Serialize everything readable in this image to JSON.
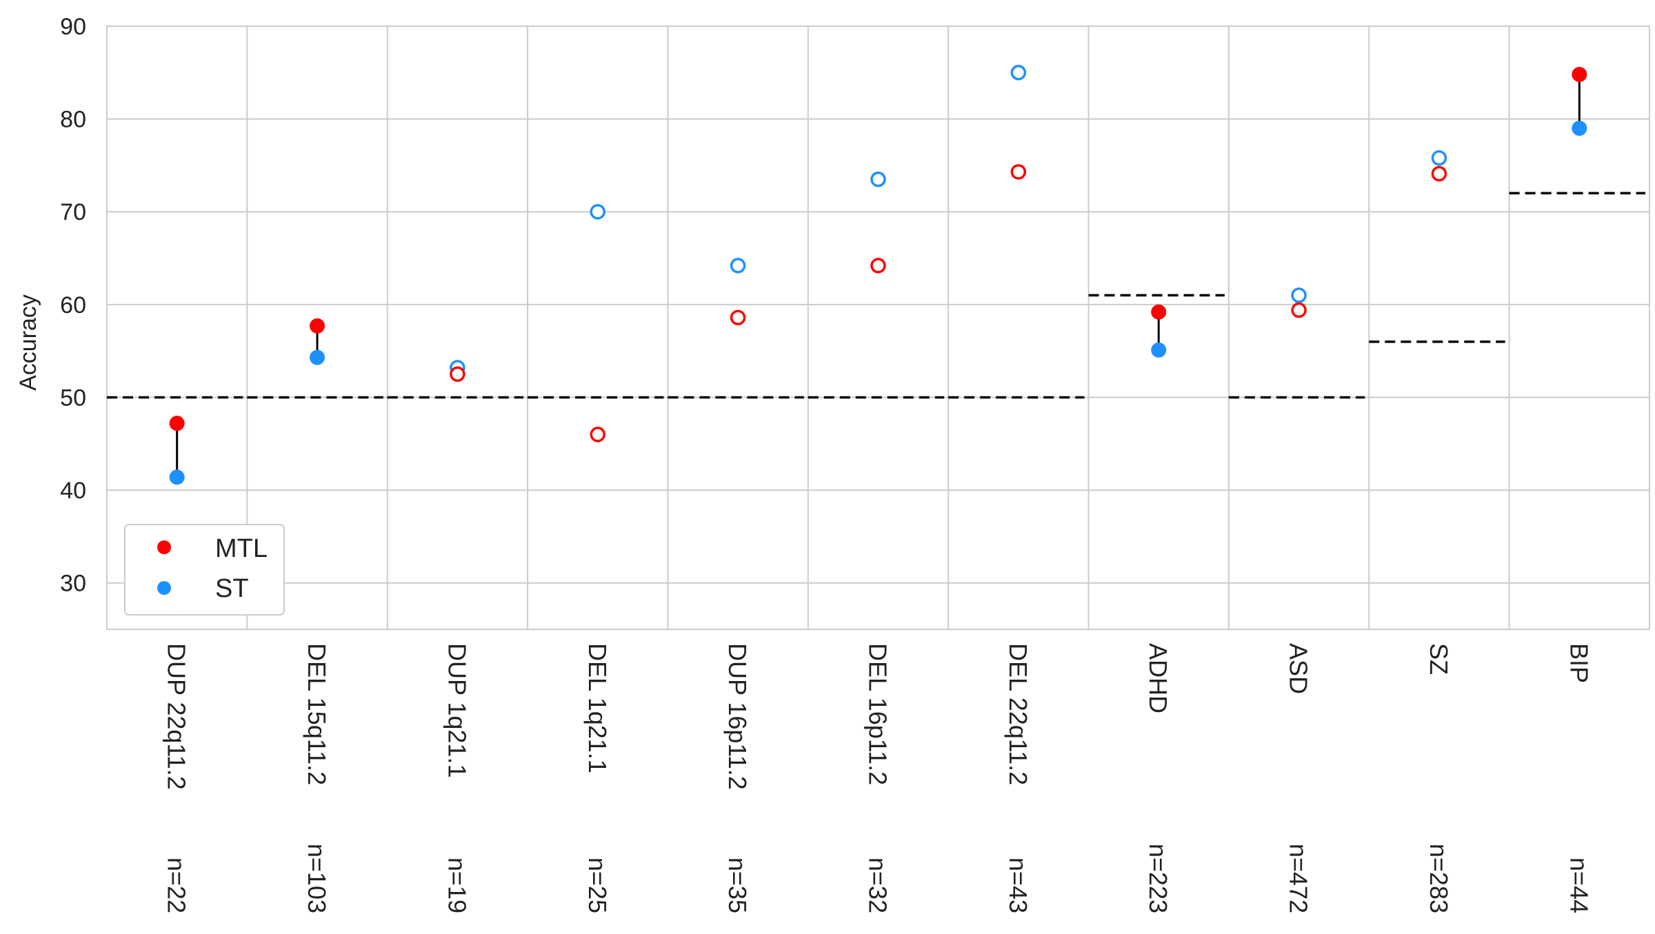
{
  "chart_data": {
    "type": "scatter",
    "title": "",
    "xlabel": "",
    "ylabel": "Accuracy",
    "ylim": [
      25,
      90
    ],
    "yticks": [
      30,
      40,
      50,
      60,
      70,
      80,
      90
    ],
    "grid": true,
    "legend_position": "lower-left",
    "categories": [
      "DUP 22q11.2",
      "DEL 15q11.2",
      "DUP 1q21.1",
      "DEL 1q21.1",
      "DUP 16p11.2",
      "DEL 16p11.2",
      "DEL 22q11.2",
      "ADHD",
      "ASD",
      "SZ",
      "BIP"
    ],
    "sample_sizes": [
      "n=22",
      "n=103",
      "n=19",
      "n=25",
      "n=35",
      "n=32",
      "n=43",
      "n=223",
      "n=472",
      "n=283",
      "n=44"
    ],
    "series": [
      {
        "name": "MTL",
        "color": "#ff0000",
        "values": [
          47.2,
          57.7,
          52.5,
          46.0,
          58.6,
          64.2,
          74.3,
          59.2,
          59.4,
          74.1,
          84.8
        ]
      },
      {
        "name": "ST",
        "color": "#1e90ff",
        "values": [
          41.4,
          54.3,
          53.2,
          70.0,
          64.2,
          73.5,
          85.0,
          55.1,
          61.0,
          75.8,
          79.0
        ]
      }
    ],
    "filled": [
      true,
      true,
      false,
      false,
      false,
      false,
      false,
      true,
      false,
      false,
      true
    ],
    "chance_levels": [
      50,
      50,
      50,
      50,
      50,
      50,
      50,
      61,
      50,
      56,
      72
    ]
  }
}
